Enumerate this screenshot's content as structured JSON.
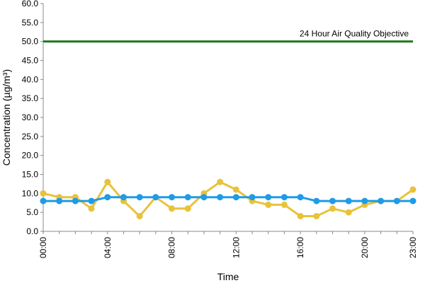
{
  "chart_data": {
    "type": "line",
    "title": "",
    "xlabel": "Time",
    "ylabel": "Concentration (µg/m³)",
    "ylim": [
      0,
      60
    ],
    "y_ticks": [
      "0.0",
      "5.0",
      "10.0",
      "15.0",
      "20.0",
      "25.0",
      "30.0",
      "35.0",
      "40.0",
      "45.0",
      "50.0",
      "55.0",
      "60.0"
    ],
    "x_tick_labels": [
      "00:00",
      "04:00",
      "08:00",
      "12:00",
      "16:00",
      "20:00",
      "23:00"
    ],
    "x": [
      "00:00",
      "01:00",
      "02:00",
      "03:00",
      "04:00",
      "05:00",
      "06:00",
      "07:00",
      "08:00",
      "09:00",
      "10:00",
      "11:00",
      "12:00",
      "13:00",
      "14:00",
      "15:00",
      "16:00",
      "17:00",
      "18:00",
      "19:00",
      "20:00",
      "21:00",
      "22:00",
      "23:00"
    ],
    "grid": false,
    "legend": "none",
    "series": [
      {
        "color": "#e8c23a",
        "values": [
          10,
          9,
          9,
          6,
          13,
          8,
          4,
          9,
          6,
          6,
          10,
          13,
          11,
          8,
          7,
          7,
          4,
          4,
          6,
          5,
          7,
          8,
          8,
          11
        ]
      },
      {
        "color": "#1f9be8",
        "values": [
          8,
          8,
          8,
          8,
          9,
          9,
          9,
          9,
          9,
          9,
          9,
          9,
          9,
          9,
          9,
          9,
          9,
          8,
          8,
          8,
          8,
          8,
          8,
          8
        ]
      }
    ],
    "reference_line": {
      "label": "24 Hour Air Quality Objective",
      "value": 50,
      "color": "#1e7a1e"
    }
  }
}
